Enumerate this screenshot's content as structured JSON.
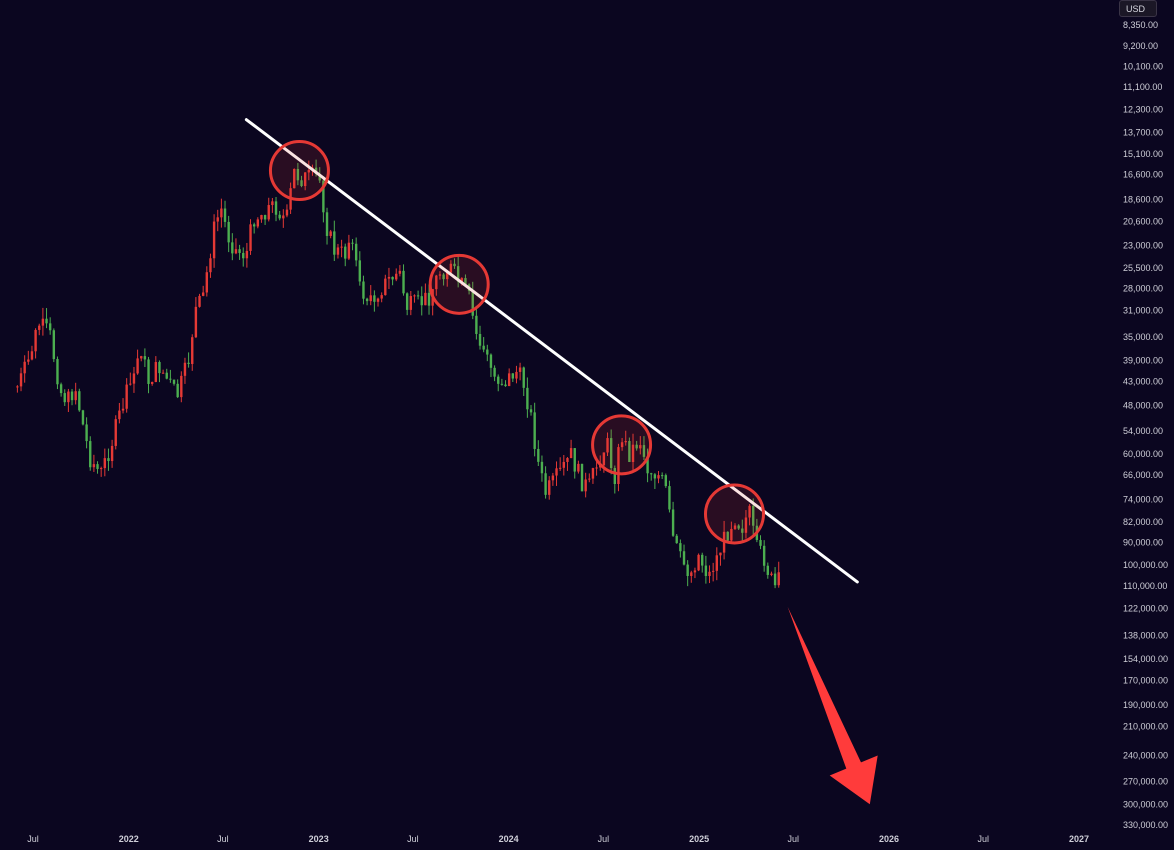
{
  "currency": "USD",
  "colors": {
    "background": "#0b0620",
    "up": "#4caf50",
    "down": "#e53935",
    "trendline": "#ffffff",
    "circle": "#e53935",
    "arrow": "#ff3b3b",
    "axis_text": "#cfcfd8"
  },
  "chart_data": {
    "type": "candlestick",
    "price_scale": "log",
    "inverted": true,
    "y_axis_ticks": [
      8350,
      9200,
      10100,
      11100,
      12300,
      13700,
      15100,
      16600,
      18600,
      20600,
      23000,
      25500,
      28000,
      31000,
      35000,
      39000,
      43000,
      48000,
      54000,
      60000,
      66000,
      74000,
      82000,
      90000,
      100000,
      110000,
      122000,
      138000,
      154000,
      170000,
      190000,
      210000,
      240000,
      270000,
      300000,
      330000
    ],
    "y_axis_labels": [
      "8,350.00",
      "9,200.00",
      "10,100.00",
      "11,100.00",
      "12,300.00",
      "13,700.00",
      "15,100.00",
      "16,600.00",
      "18,600.00",
      "20,600.00",
      "23,000.00",
      "25,500.00",
      "28,000.00",
      "31,000.00",
      "35,000.00",
      "39,000.00",
      "43,000.00",
      "48,000.00",
      "54,000.00",
      "60,000.00",
      "66,000.00",
      "74,000.00",
      "82,000.00",
      "90,000.00",
      "100,000.00",
      "110,000.00",
      "122,000.00",
      "138,000.00",
      "154,000.00",
      "170,000.00",
      "190,000.00",
      "210,000.00",
      "240,000.00",
      "270,000.00",
      "300,000.00",
      "330,000.00"
    ],
    "x_axis_labels": [
      {
        "date": "2021-07-01",
        "label": "Jul",
        "year": false
      },
      {
        "date": "2022-01-01",
        "label": "2022",
        "year": true
      },
      {
        "date": "2022-07-01",
        "label": "Jul",
        "year": false
      },
      {
        "date": "2023-01-01",
        "label": "2023",
        "year": true
      },
      {
        "date": "2023-07-01",
        "label": "Jul",
        "year": false
      },
      {
        "date": "2024-01-01",
        "label": "2024",
        "year": true
      },
      {
        "date": "2024-07-01",
        "label": "Jul",
        "year": false
      },
      {
        "date": "2025-01-01",
        "label": "2025",
        "year": true
      },
      {
        "date": "2025-07-01",
        "label": "Jul",
        "year": false
      },
      {
        "date": "2026-01-01",
        "label": "2026",
        "year": true
      },
      {
        "date": "2026-07-01",
        "label": "Jul",
        "year": false
      },
      {
        "date": "2027-01-01",
        "label": "2027",
        "year": true
      }
    ],
    "price_path": [
      [
        "2021-06-01",
        44000
      ],
      [
        "2021-06-21",
        39500
      ],
      [
        "2021-07-12",
        33000
      ],
      [
        "2021-08-02",
        34500
      ],
      [
        "2021-08-23",
        45000
      ],
      [
        "2021-09-06",
        47000
      ],
      [
        "2021-09-20",
        44000
      ],
      [
        "2021-10-04",
        52000
      ],
      [
        "2021-10-18",
        61000
      ],
      [
        "2021-11-08",
        66000
      ],
      [
        "2021-11-29",
        57000
      ],
      [
        "2021-12-20",
        48000
      ],
      [
        "2022-01-10",
        42000
      ],
      [
        "2022-01-24",
        36500
      ],
      [
        "2022-02-07",
        43000
      ],
      [
        "2022-02-28",
        40000
      ],
      [
        "2022-03-21",
        43500
      ],
      [
        "2022-04-04",
        46000
      ],
      [
        "2022-04-25",
        39500
      ],
      [
        "2022-05-09",
        31000
      ],
      [
        "2022-05-23",
        29500
      ],
      [
        "2022-06-13",
        21500
      ],
      [
        "2022-06-27",
        19300
      ],
      [
        "2022-07-11",
        22000
      ],
      [
        "2022-07-25",
        23500
      ],
      [
        "2022-08-15",
        24000
      ],
      [
        "2022-08-29",
        20200
      ],
      [
        "2022-09-12",
        20000
      ],
      [
        "2022-09-26",
        19300
      ],
      [
        "2022-10-10",
        19200
      ],
      [
        "2022-10-31",
        20600
      ],
      [
        "2022-11-14",
        16400
      ],
      [
        "2022-11-28",
        16900
      ],
      [
        "2022-12-19",
        16800
      ],
      [
        "2023-01-02",
        16800
      ],
      [
        "2023-01-16",
        21000
      ],
      [
        "2023-01-30",
        23500
      ],
      [
        "2023-02-20",
        24000
      ],
      [
        "2023-03-06",
        21500
      ],
      [
        "2023-03-20",
        28000
      ],
      [
        "2023-04-10",
        30000
      ],
      [
        "2023-04-24",
        28500
      ],
      [
        "2023-05-15",
        27000
      ],
      [
        "2023-06-05",
        26000
      ],
      [
        "2023-06-19",
        30500
      ],
      [
        "2023-07-10",
        30200
      ],
      [
        "2023-07-31",
        29200
      ],
      [
        "2023-08-21",
        26000
      ],
      [
        "2023-09-11",
        25500
      ],
      [
        "2023-09-25",
        27000
      ],
      [
        "2023-10-16",
        29000
      ],
      [
        "2023-10-30",
        34500
      ],
      [
        "2023-11-13",
        37000
      ],
      [
        "2023-12-04",
        42000
      ],
      [
        "2023-12-25",
        43000
      ],
      [
        "2024-01-15",
        41000
      ],
      [
        "2024-01-29",
        43000
      ],
      [
        "2024-02-12",
        50000
      ],
      [
        "2024-02-26",
        62000
      ],
      [
        "2024-03-11",
        72000
      ],
      [
        "2024-03-25",
        69000
      ],
      [
        "2024-04-15",
        64000
      ],
      [
        "2024-04-29",
        60000
      ],
      [
        "2024-05-20",
        68000
      ],
      [
        "2024-06-03",
        70000
      ],
      [
        "2024-06-24",
        61000
      ],
      [
        "2024-07-08",
        57000
      ],
      [
        "2024-07-22",
        67000
      ],
      [
        "2024-08-05",
        55000
      ],
      [
        "2024-08-19",
        60000
      ],
      [
        "2024-09-09",
        56000
      ],
      [
        "2024-09-23",
        64000
      ],
      [
        "2024-10-14",
        66000
      ],
      [
        "2024-10-28",
        70000
      ],
      [
        "2024-11-11",
        88000
      ],
      [
        "2024-11-25",
        97000
      ],
      [
        "2024-12-16",
        104000
      ],
      [
        "2024-12-30",
        95000
      ],
      [
        "2025-01-13",
        102000
      ],
      [
        "2025-01-20",
        105000
      ],
      [
        "2025-02-03",
        97000
      ],
      [
        "2025-02-24",
        86000
      ],
      [
        "2025-03-10",
        80000
      ],
      [
        "2025-03-24",
        84000
      ],
      [
        "2025-04-07",
        78000
      ],
      [
        "2025-04-21",
        93000
      ],
      [
        "2025-05-05",
        96000
      ],
      [
        "2025-05-19",
        107000
      ],
      [
        "2025-05-26",
        111000
      ],
      [
        "2025-06-09",
        106000
      ]
    ],
    "trendline": {
      "start": [
        "2022-08-15",
        12900
      ],
      "end": [
        "2025-11-01",
        108000
      ]
    },
    "highlight_circles": [
      {
        "date": "2022-11-25",
        "price": 16300
      },
      {
        "date": "2023-09-28",
        "price": 27500
      },
      {
        "date": "2024-08-05",
        "price": 57500
      },
      {
        "date": "2025-03-10",
        "price": 79000
      }
    ],
    "arrow": {
      "start": [
        "2025-06-20",
        121000
      ],
      "end": [
        "2025-11-25",
        300000
      ]
    }
  }
}
